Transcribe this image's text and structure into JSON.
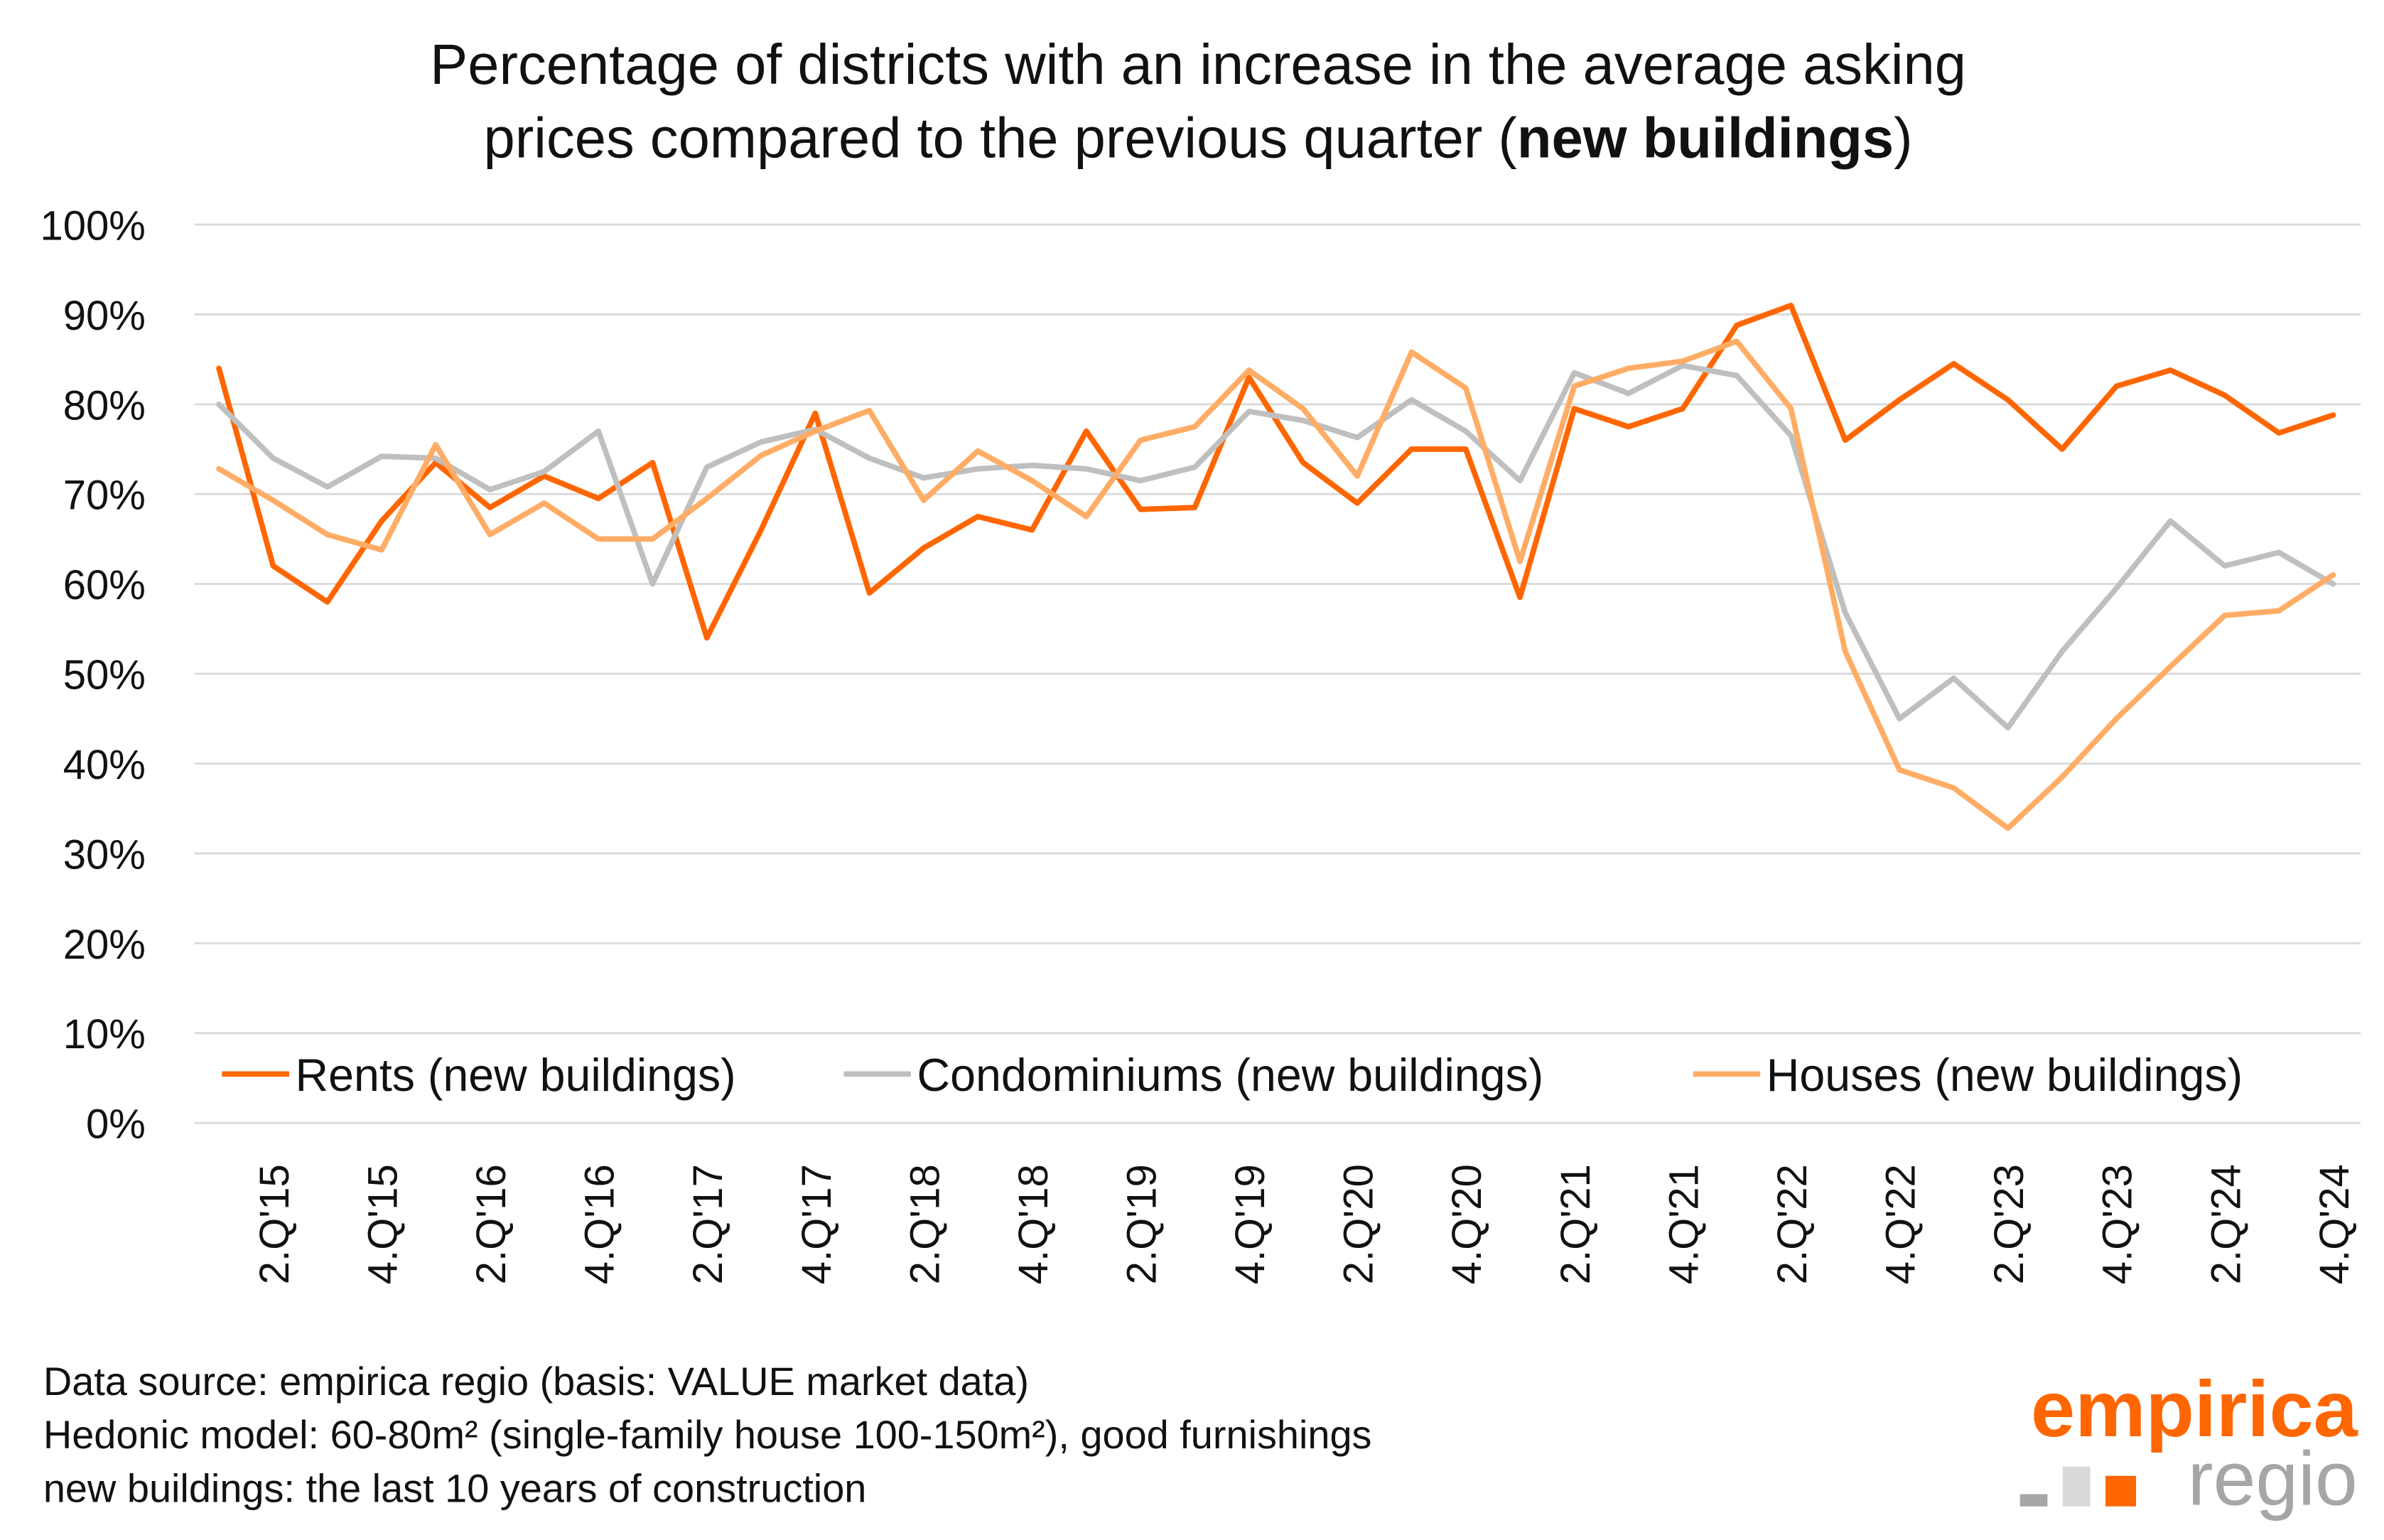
{
  "chart_data": {
    "type": "line",
    "title_line1": "Percentage of districts with an increase in the average asking",
    "title_line2_pre": "prices compared to the previous quarter (",
    "title_line2_bold": "new buildings",
    "title_line2_post": ")",
    "xlabel": "",
    "ylabel": "",
    "ylim": [
      0,
      100
    ],
    "y_ticks": [
      "0%",
      "10%",
      "20%",
      "30%",
      "40%",
      "50%",
      "60%",
      "70%",
      "80%",
      "90%",
      "100%"
    ],
    "x_tick_labels": [
      "2.Q'15",
      "4.Q'15",
      "2.Q'16",
      "4.Q'16",
      "2.Q'17",
      "4.Q'17",
      "2.Q'18",
      "4.Q'18",
      "2.Q'19",
      "4.Q'19",
      "2.Q'20",
      "4.Q'20",
      "2.Q'21",
      "4.Q'21",
      "2.Q'22",
      "4.Q'22",
      "2.Q'23",
      "4.Q'23",
      "2.Q'24",
      "4.Q'24"
    ],
    "grid": true,
    "legend_placement": "bottom",
    "series": [
      {
        "name": "Rents (new buildings)",
        "color": "#FF6600",
        "values": [
          84,
          62,
          58,
          67,
          73.5,
          68.5,
          72,
          69.5,
          73.5,
          54,
          66,
          79,
          59,
          64,
          67.5,
          66,
          77,
          68.3,
          68.5,
          83,
          73.5,
          69,
          75,
          75,
          58.5,
          79.5,
          77.5,
          79.5,
          88.8,
          91,
          76,
          80.5,
          84.5,
          80.5,
          75,
          82,
          83.8,
          81,
          76.8,
          78.8
        ]
      },
      {
        "name": "Condominiums (new buildings)",
        "color": "#BFBFBF",
        "values": [
          80,
          74,
          70.8,
          74.2,
          74,
          70.5,
          72.5,
          77,
          60,
          73,
          75.8,
          77.2,
          74,
          71.8,
          72.8,
          73.2,
          72.8,
          71.5,
          73,
          79.2,
          78.2,
          76.3,
          80.5,
          77,
          71.5,
          83.5,
          81.2,
          84.3,
          83.2,
          76.5,
          56.8,
          45,
          49.5,
          44,
          52.5,
          59.5,
          67,
          62,
          63.5,
          60
        ]
      },
      {
        "name": "Houses (new buildings)",
        "color": "#FFAD66",
        "values": [
          72.8,
          69.3,
          65.5,
          63.8,
          75.5,
          65.5,
          69,
          65,
          65,
          69.5,
          74.3,
          77,
          79.3,
          69.3,
          74.8,
          71.5,
          67.5,
          76,
          77.5,
          83.8,
          79.5,
          72,
          85.8,
          81.8,
          62.5,
          82,
          84,
          84.8,
          87,
          79.5,
          52.5,
          39.3,
          37.3,
          32.8,
          38.5,
          45,
          50.8,
          56.5,
          57,
          61
        ]
      }
    ]
  },
  "footnotes": [
    "Data source: empirica regio (basis: VALUE market data)",
    "Hedonic model: 60-80m² (single-family house 100-150m²), good furnishings",
    "new buildings: the last 10 years of construction"
  ],
  "logo": {
    "line1": "empirica",
    "line2": "regio",
    "orange": "#FF6600",
    "gray": "#A6A6A6",
    "light_gray": "#D9D9D9"
  }
}
